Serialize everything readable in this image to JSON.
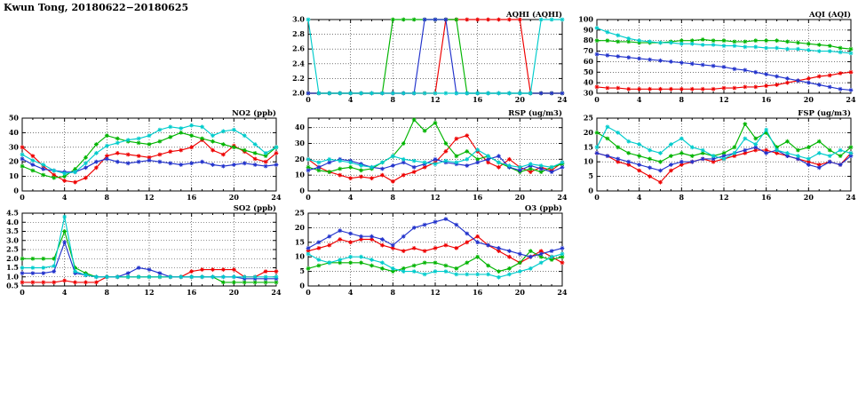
{
  "page": {
    "title": "Kwun Tong, 20180622−20180625"
  },
  "colors": {
    "red": "#ee0000",
    "green": "#00b400",
    "blue": "#2233cc",
    "cyan": "#00cccc",
    "frame": "#000000",
    "grid": "#000000",
    "background": "#ffffff"
  },
  "x_hours": [
    0,
    1,
    2,
    3,
    4,
    5,
    6,
    7,
    8,
    9,
    10,
    11,
    12,
    13,
    14,
    15,
    16,
    17,
    18,
    19,
    20,
    21,
    22,
    23,
    24
  ],
  "chart_data": [
    {
      "id": "aqhi",
      "type": "line",
      "title": "AQHI (AQHI)",
      "xlim": [
        0,
        24
      ],
      "xticks": [
        0,
        4,
        8,
        12,
        16,
        20,
        24
      ],
      "ylim": [
        2.0,
        3.0
      ],
      "yticks": [
        2.0,
        2.2,
        2.4,
        2.6,
        2.8,
        3.0
      ],
      "ytick_decimals": 1,
      "grid": true,
      "marker": "asterisk",
      "series": [
        {
          "name": "red",
          "color_key": "red",
          "values": [
            2,
            2,
            2,
            2,
            2,
            2,
            2,
            2,
            2,
            2,
            2,
            2,
            2,
            3,
            3,
            3,
            3,
            3,
            3,
            3,
            3,
            2,
            2,
            2,
            2
          ]
        },
        {
          "name": "green",
          "color_key": "green",
          "values": [
            2,
            2,
            2,
            2,
            2,
            2,
            2,
            2,
            3,
            3,
            3,
            3,
            3,
            3,
            3,
            2,
            2,
            2,
            2,
            2,
            2,
            2,
            2,
            2,
            2
          ]
        },
        {
          "name": "blue",
          "color_key": "blue",
          "values": [
            2,
            2,
            2,
            2,
            2,
            2,
            2,
            2,
            2,
            2,
            2,
            3,
            3,
            3,
            2,
            2,
            2,
            2,
            2,
            2,
            2,
            2,
            2,
            2,
            2
          ]
        },
        {
          "name": "cyan",
          "color_key": "cyan",
          "values": [
            3,
            2,
            2,
            2,
            2,
            2,
            2,
            2,
            2,
            2,
            2,
            2,
            2,
            2,
            2,
            2,
            2,
            2,
            2,
            2,
            2,
            2,
            3,
            3,
            3
          ]
        }
      ]
    },
    {
      "id": "aqi",
      "type": "line",
      "title": "AQI (AQI)",
      "xlim": [
        0,
        24
      ],
      "xticks": [
        0,
        4,
        8,
        12,
        16,
        20,
        24
      ],
      "ylim": [
        30,
        100
      ],
      "yticks": [
        30,
        40,
        50,
        60,
        70,
        80,
        90,
        100
      ],
      "ytick_decimals": 0,
      "grid": true,
      "marker": "asterisk",
      "series": [
        {
          "name": "red",
          "color_key": "red",
          "values": [
            36,
            35,
            35,
            34,
            34,
            34,
            34,
            34,
            34,
            34,
            34,
            34,
            35,
            35,
            36,
            36,
            37,
            38,
            40,
            42,
            44,
            46,
            47,
            49,
            50
          ]
        },
        {
          "name": "green",
          "color_key": "green",
          "values": [
            80,
            80,
            79,
            79,
            78,
            78,
            78,
            79,
            80,
            80,
            81,
            80,
            80,
            79,
            79,
            80,
            80,
            80,
            79,
            78,
            77,
            76,
            75,
            73,
            72
          ]
        },
        {
          "name": "blue",
          "color_key": "blue",
          "values": [
            67,
            66,
            65,
            64,
            63,
            62,
            61,
            60,
            59,
            58,
            57,
            56,
            55,
            53,
            52,
            50,
            48,
            46,
            44,
            42,
            40,
            38,
            36,
            34,
            33
          ]
        },
        {
          "name": "cyan",
          "color_key": "cyan",
          "values": [
            92,
            88,
            85,
            82,
            80,
            79,
            78,
            78,
            77,
            77,
            76,
            76,
            75,
            75,
            74,
            74,
            73,
            73,
            72,
            72,
            71,
            70,
            70,
            69,
            68
          ]
        }
      ]
    },
    {
      "id": "no2",
      "type": "line",
      "title": "NO2 (ppb)",
      "xlim": [
        0,
        24
      ],
      "xticks": [
        0,
        4,
        8,
        12,
        16,
        20,
        24
      ],
      "ylim": [
        0,
        50
      ],
      "yticks": [
        0,
        10,
        20,
        30,
        40,
        50
      ],
      "ytick_decimals": 0,
      "grid": true,
      "marker": "asterisk",
      "series": [
        {
          "name": "red",
          "color_key": "red",
          "values": [
            30,
            24,
            17,
            11,
            7,
            6,
            9,
            16,
            24,
            26,
            25,
            24,
            23,
            25,
            27,
            28,
            30,
            35,
            28,
            25,
            31,
            27,
            22,
            20,
            26
          ]
        },
        {
          "name": "green",
          "color_key": "green",
          "values": [
            17,
            14,
            11,
            9,
            10,
            15,
            23,
            32,
            38,
            36,
            34,
            33,
            32,
            34,
            37,
            40,
            38,
            36,
            34,
            32,
            30,
            28,
            26,
            24,
            30
          ]
        },
        {
          "name": "blue",
          "color_key": "blue",
          "values": [
            22,
            18,
            15,
            14,
            13,
            13,
            16,
            20,
            22,
            20,
            19,
            20,
            21,
            20,
            19,
            18,
            19,
            20,
            18,
            17,
            18,
            19,
            18,
            17,
            18
          ]
        },
        {
          "name": "cyan",
          "color_key": "cyan",
          "values": [
            25,
            21,
            18,
            14,
            12,
            13,
            19,
            26,
            31,
            33,
            35,
            36,
            38,
            42,
            44,
            43,
            45,
            44,
            38,
            41,
            42,
            38,
            32,
            26,
            30
          ]
        }
      ]
    },
    {
      "id": "rsp",
      "type": "line",
      "title": "RSP (ug/m3)",
      "xlim": [
        0,
        24
      ],
      "xticks": [
        0,
        4,
        8,
        12,
        16,
        20,
        24
      ],
      "ylim": [
        0,
        46
      ],
      "yticks": [
        0,
        10,
        20,
        30,
        40
      ],
      "ytick_decimals": 0,
      "grid": true,
      "marker": "asterisk",
      "series": [
        {
          "name": "red",
          "color_key": "red",
          "values": [
            20,
            15,
            12,
            10,
            8,
            9,
            8,
            10,
            6,
            10,
            12,
            15,
            18,
            25,
            33,
            35,
            25,
            18,
            15,
            20,
            15,
            12,
            15,
            13,
            18
          ]
        },
        {
          "name": "green",
          "color_key": "green",
          "values": [
            15,
            13,
            12,
            14,
            15,
            13,
            14,
            18,
            22,
            30,
            45,
            38,
            43,
            30,
            22,
            25,
            20,
            22,
            18,
            15,
            12,
            14,
            12,
            15,
            17
          ]
        },
        {
          "name": "blue",
          "color_key": "blue",
          "values": [
            13,
            15,
            18,
            20,
            19,
            17,
            15,
            14,
            16,
            18,
            15,
            17,
            20,
            18,
            17,
            16,
            18,
            20,
            22,
            15,
            13,
            16,
            14,
            12,
            15
          ]
        },
        {
          "name": "cyan",
          "color_key": "cyan",
          "values": [
            20,
            18,
            20,
            19,
            18,
            16,
            15,
            18,
            22,
            20,
            19,
            18,
            17,
            19,
            18,
            20,
            26,
            22,
            18,
            16,
            15,
            17,
            16,
            15,
            18
          ]
        }
      ]
    },
    {
      "id": "fsp",
      "type": "line",
      "title": "FSP (ug/m3)",
      "xlim": [
        0,
        24
      ],
      "xticks": [
        0,
        4,
        8,
        12,
        16,
        20,
        24
      ],
      "ylim": [
        0,
        25
      ],
      "yticks": [
        0,
        5,
        10,
        15,
        20,
        25
      ],
      "ytick_decimals": 0,
      "grid": true,
      "marker": "asterisk",
      "series": [
        {
          "name": "red",
          "color_key": "red",
          "values": [
            13,
            12,
            10,
            9,
            7,
            5,
            3,
            7,
            9,
            10,
            11,
            10,
            11,
            12,
            13,
            14,
            14,
            13,
            12,
            11,
            10,
            9,
            10,
            9,
            13
          ]
        },
        {
          "name": "green",
          "color_key": "green",
          "values": [
            20,
            18,
            15,
            13,
            12,
            11,
            10,
            12,
            13,
            12,
            13,
            12,
            13,
            15,
            23,
            18,
            20,
            15,
            17,
            14,
            15,
            17,
            14,
            12,
            15
          ]
        },
        {
          "name": "blue",
          "color_key": "blue",
          "values": [
            13,
            12,
            11,
            10,
            9,
            8,
            7,
            9,
            10,
            10,
            11,
            11,
            12,
            13,
            14,
            15,
            13,
            14,
            12,
            11,
            9,
            8,
            10,
            9,
            12
          ]
        },
        {
          "name": "cyan",
          "color_key": "cyan",
          "values": [
            15,
            22,
            20,
            17,
            16,
            14,
            13,
            16,
            18,
            15,
            14,
            12,
            11,
            13,
            18,
            16,
            21,
            14,
            13,
            12,
            11,
            13,
            12,
            14,
            13
          ]
        }
      ]
    },
    {
      "id": "so2",
      "type": "line",
      "title": "SO2 (ppb)",
      "xlim": [
        0,
        24
      ],
      "xticks": [
        0,
        4,
        8,
        12,
        16,
        20,
        24
      ],
      "ylim": [
        0.5,
        4.5
      ],
      "yticks": [
        0.5,
        1.0,
        1.5,
        2.0,
        2.5,
        3.0,
        3.5,
        4.0,
        4.5
      ],
      "ytick_decimals": 1,
      "grid": true,
      "marker": "asterisk",
      "series": [
        {
          "name": "red",
          "color_key": "red",
          "values": [
            0.7,
            0.7,
            0.7,
            0.7,
            0.8,
            0.7,
            0.7,
            0.7,
            1.0,
            1.0,
            1.0,
            1.0,
            1.0,
            1.0,
            1.0,
            1.0,
            1.3,
            1.4,
            1.4,
            1.4,
            1.4,
            1.0,
            1.0,
            1.3,
            1.3
          ]
        },
        {
          "name": "green",
          "color_key": "green",
          "values": [
            2.0,
            2.0,
            2.0,
            2.0,
            3.5,
            1.5,
            1.2,
            1.0,
            1.0,
            1.0,
            1.0,
            1.0,
            1.0,
            1.0,
            1.0,
            1.0,
            1.0,
            1.0,
            1.0,
            0.7,
            0.7,
            0.7,
            0.7,
            0.7,
            0.7
          ]
        },
        {
          "name": "blue",
          "color_key": "blue",
          "values": [
            1.2,
            1.2,
            1.2,
            1.3,
            2.9,
            1.2,
            1.1,
            1.0,
            1.0,
            1.0,
            1.2,
            1.5,
            1.4,
            1.2,
            1.0,
            1.0,
            1.0,
            1.0,
            1.0,
            1.0,
            1.0,
            0.9,
            0.9,
            0.9,
            0.9
          ]
        },
        {
          "name": "cyan",
          "color_key": "cyan",
          "values": [
            1.5,
            1.5,
            1.5,
            1.6,
            4.3,
            1.3,
            1.1,
            1.0,
            1.0,
            1.0,
            1.0,
            1.0,
            1.0,
            1.0,
            1.0,
            1.0,
            1.0,
            1.0,
            1.0,
            1.0,
            1.0,
            1.0,
            1.0,
            1.0,
            1.0
          ]
        }
      ]
    },
    {
      "id": "o3",
      "type": "line",
      "title": "O3 (ppb)",
      "xlim": [
        0,
        24
      ],
      "xticks": [
        0,
        4,
        8,
        12,
        16,
        20,
        24
      ],
      "ylim": [
        0,
        25
      ],
      "yticks": [
        0,
        5,
        10,
        15,
        20,
        25
      ],
      "ytick_decimals": 0,
      "grid": true,
      "marker": "asterisk",
      "series": [
        {
          "name": "red",
          "color_key": "red",
          "values": [
            12,
            13,
            14,
            16,
            15,
            16,
            16,
            14,
            13,
            12,
            13,
            12,
            13,
            14,
            13,
            15,
            17,
            14,
            12,
            10,
            8,
            10,
            12,
            10,
            8
          ]
        },
        {
          "name": "green",
          "color_key": "green",
          "values": [
            6,
            7,
            8,
            8,
            8,
            8,
            7,
            6,
            5,
            6,
            7,
            8,
            8,
            7,
            6,
            8,
            10,
            7,
            5,
            6,
            8,
            12,
            10,
            9,
            10
          ]
        },
        {
          "name": "blue",
          "color_key": "blue",
          "values": [
            13,
            15,
            17,
            19,
            18,
            17,
            17,
            16,
            14,
            17,
            20,
            21,
            22,
            23,
            21,
            18,
            15,
            14,
            13,
            12,
            11,
            10,
            11,
            12,
            13
          ]
        },
        {
          "name": "cyan",
          "color_key": "cyan",
          "values": [
            11,
            9,
            8,
            9,
            10,
            10,
            9,
            8,
            6,
            5,
            5,
            4,
            5,
            5,
            4,
            4,
            4,
            4,
            3,
            4,
            5,
            6,
            8,
            10,
            11
          ]
        }
      ]
    }
  ]
}
